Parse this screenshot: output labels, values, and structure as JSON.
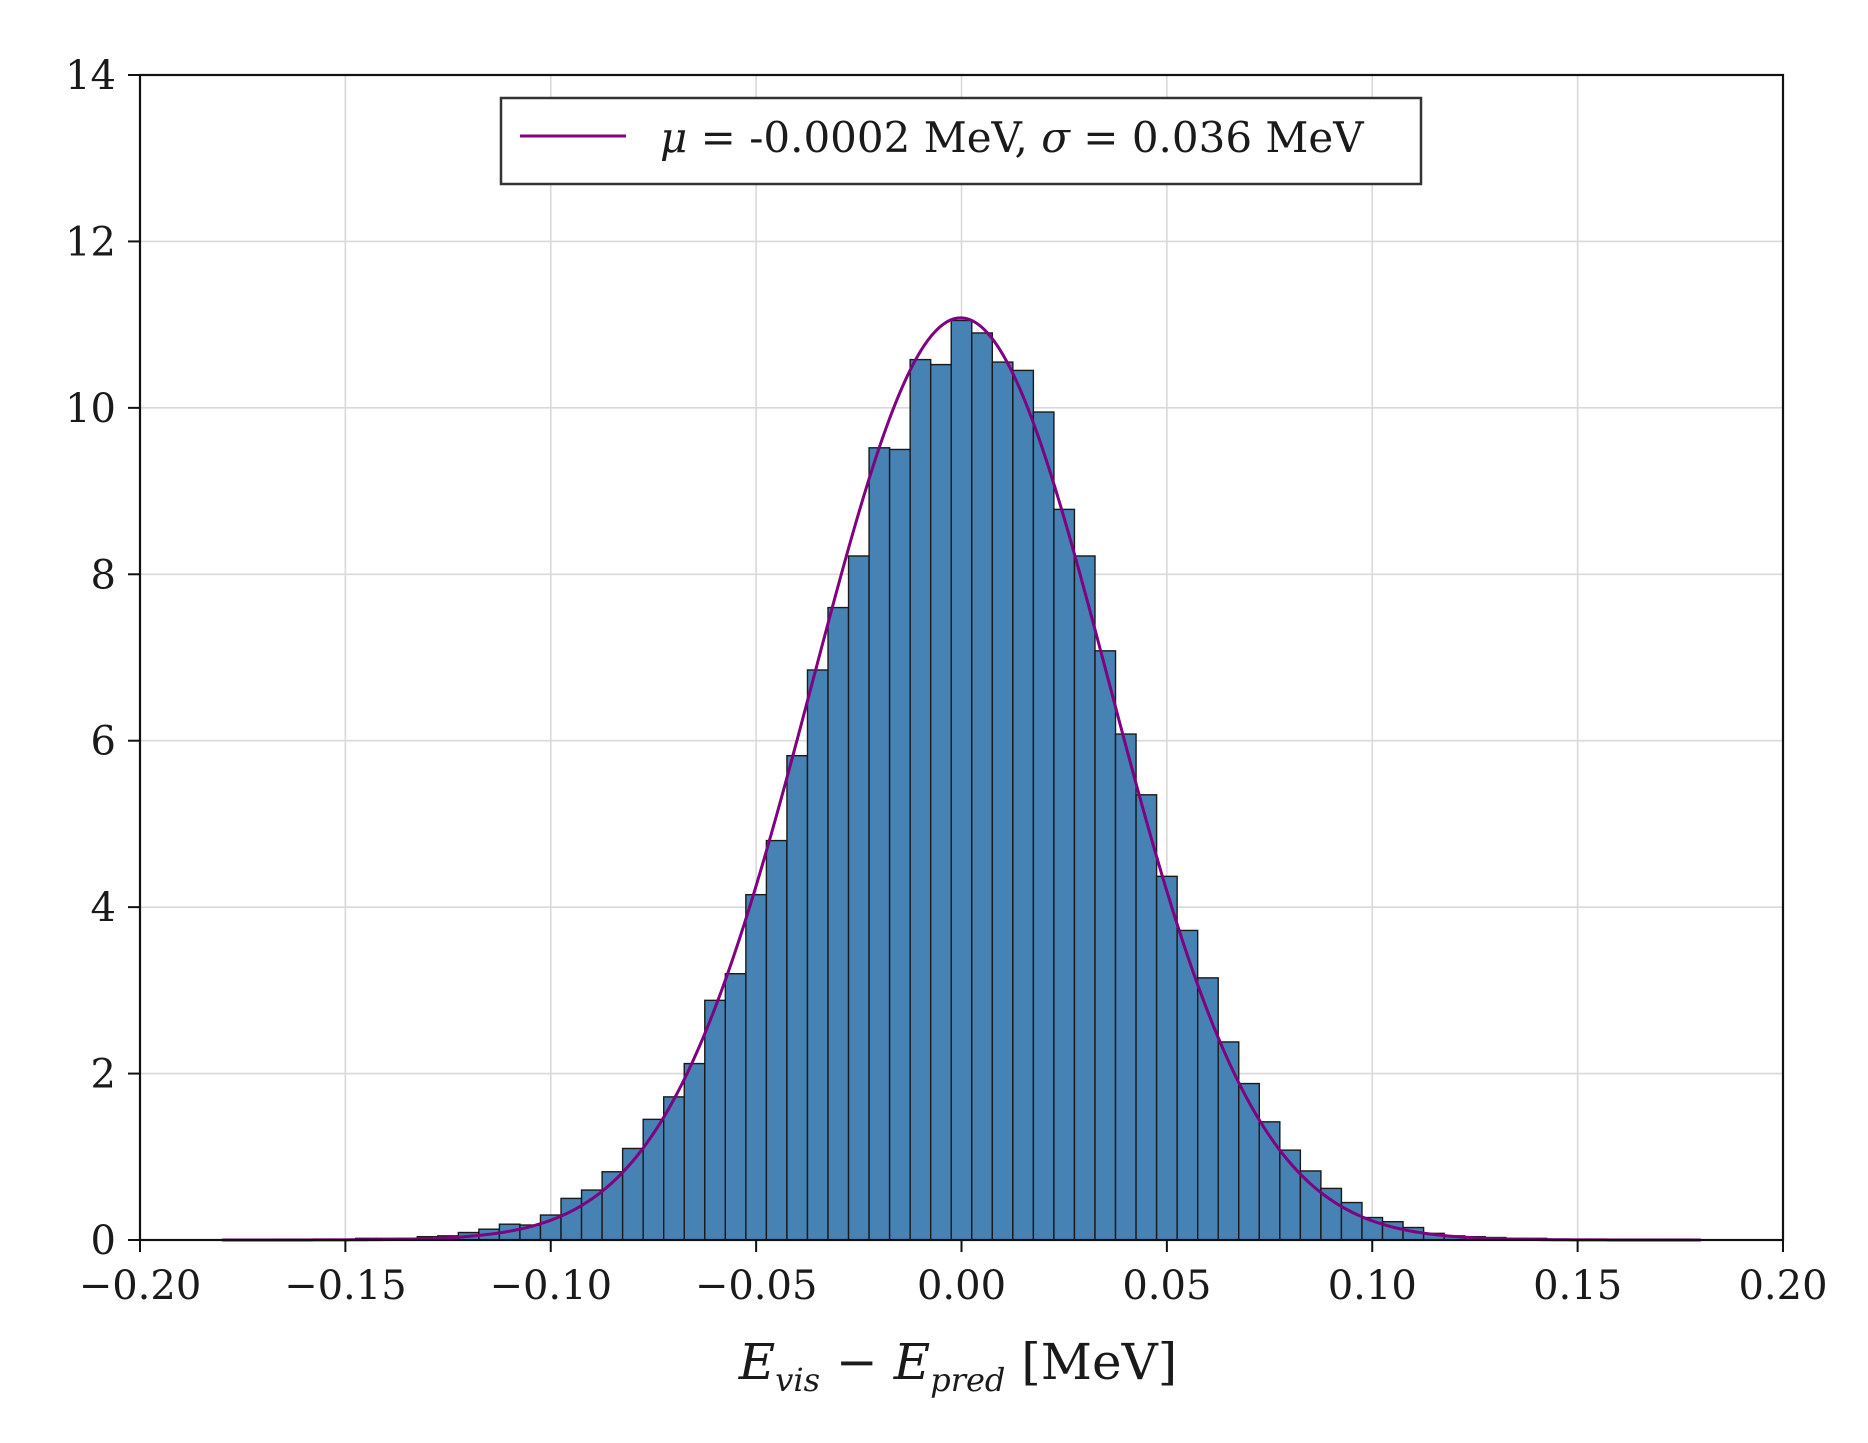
{
  "chart_data": {
    "type": "bar",
    "xlabel_parts": {
      "e1": "E",
      "sub1": "vis",
      "minus": " − ",
      "e2": "E",
      "sub2": "pred",
      "unit": " [MeV]"
    },
    "xlim": [
      -0.2,
      0.2
    ],
    "ylim": [
      0,
      14
    ],
    "x_ticks": [
      -0.2,
      -0.15,
      -0.1,
      -0.05,
      0.0,
      0.05,
      0.1,
      0.15,
      0.2
    ],
    "x_tick_labels": [
      "−0.20",
      "−0.15",
      "−0.10",
      "−0.05",
      "0.00",
      "0.05",
      "0.10",
      "0.15",
      "0.20"
    ],
    "y_ticks": [
      0,
      2,
      4,
      6,
      8,
      10,
      12,
      14
    ],
    "y_tick_labels": [
      "0",
      "2",
      "4",
      "6",
      "8",
      "10",
      "12",
      "14"
    ],
    "grid": true,
    "bin_edges": [
      -0.1675,
      -0.1625,
      -0.1575,
      -0.1525,
      -0.1475,
      -0.1425,
      -0.1375,
      -0.1325,
      -0.1275,
      -0.1225,
      -0.1175,
      -0.1125,
      -0.1075,
      -0.1025,
      -0.0975,
      -0.0925,
      -0.0875,
      -0.0825,
      -0.0775,
      -0.0725,
      -0.0675,
      -0.0625,
      -0.0575,
      -0.0525,
      -0.0475,
      -0.0425,
      -0.0375,
      -0.0325,
      -0.0275,
      -0.0225,
      -0.0175,
      -0.0125,
      -0.0075,
      -0.0025,
      0.0025,
      0.0075,
      0.0125,
      0.0175,
      0.0225,
      0.0275,
      0.0325,
      0.0375,
      0.0425,
      0.0475,
      0.0525,
      0.0575,
      0.0625,
      0.0675,
      0.0725,
      0.0775,
      0.0825,
      0.0875,
      0.0925,
      0.0975,
      0.1025,
      0.1075,
      0.1125,
      0.1175,
      0.1225,
      0.1275,
      0.1325,
      0.1375,
      0.1425,
      0.1475,
      0.1525,
      0.1575,
      0.1625,
      0.1675,
      0.1725,
      0.1775
    ],
    "counts": [
      0.01,
      0.01,
      0.01,
      0.01,
      0.02,
      0.02,
      0.02,
      0.04,
      0.05,
      0.09,
      0.13,
      0.19,
      0.18,
      0.3,
      0.5,
      0.6,
      0.82,
      1.1,
      1.45,
      1.72,
      2.12,
      2.88,
      3.2,
      4.15,
      4.8,
      5.82,
      6.85,
      7.6,
      8.22,
      9.52,
      9.5,
      10.58,
      10.52,
      11.05,
      10.9,
      10.55,
      10.45,
      9.95,
      8.78,
      8.22,
      7.08,
      6.08,
      5.35,
      4.37,
      3.72,
      3.15,
      2.38,
      1.88,
      1.42,
      1.08,
      0.83,
      0.62,
      0.45,
      0.27,
      0.22,
      0.15,
      0.08,
      0.05,
      0.04,
      0.03,
      0.02,
      0.02,
      0.01,
      0.01,
      0.01,
      0.01,
      0.01,
      0.01,
      0.01
    ],
    "bar_color": "#4682b4",
    "bar_edge_color": "#1a1a1a",
    "fit": {
      "type": "gaussian",
      "mu": -0.0002,
      "sigma": 0.036,
      "color": "#800080",
      "x_range": [
        -0.18,
        0.18
      ]
    },
    "legend": {
      "placement": "top-center",
      "parts": {
        "mu_symbol": "μ",
        "mu_text": " = -0.0002 MeV, ",
        "sigma_symbol": "σ",
        "sigma_text": " = 0.036 MeV"
      }
    }
  }
}
